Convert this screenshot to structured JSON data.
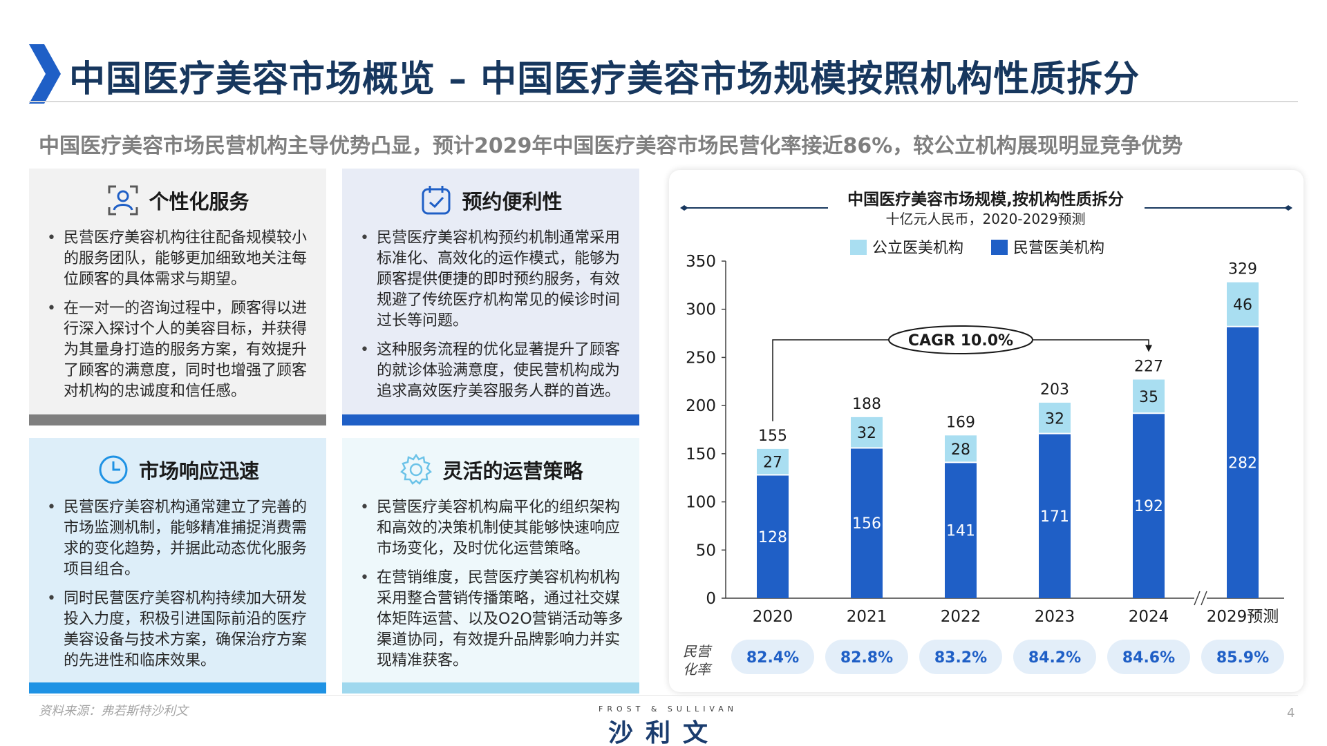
{
  "header": {
    "title": "中国医疗美容市场概览 – 中国医疗美容市场规模按照机构性质拆分",
    "subtitle": "中国医疗美容市场民营机构主导优势凸显，预计2029年中国医疗美容市场民营化率接近86%，较公立机构展现明显竞争优势"
  },
  "cards": [
    {
      "title": "个性化服务",
      "icon": "person-scan-icon",
      "bullets": [
        "民营医疗美容机构往往配备规模较小的服务团队，能够更加细致地关注每位顾客的具体需求与期望。",
        "在一对一的咨询过程中，顾客得以进行深入探讨个人的美容目标，并获得为其量身打造的服务方案，有效提升了顾客的满意度，同时也增强了顾客对机构的忠诚度和信任感。"
      ]
    },
    {
      "title": "预约便利性",
      "icon": "calendar-check-icon",
      "bullets": [
        "民营医疗美容机构预约机制通常采用标准化、高效化的运作模式，能够为顾客提供便捷的即时预约服务，有效规避了传统医疗机构常见的候诊时间过长等问题。",
        "这种服务流程的优化显著提升了顾客的就诊体验满意度，使民营机构成为追求高效医疗美容服务人群的首选。"
      ]
    },
    {
      "title": "市场响应迅速",
      "icon": "clock-icon",
      "bullets": [
        "民营医疗美容机构通常建立了完善的市场监测机制，能够精准捕捉消费需求的变化趋势，并据此动态优化服务项目组合。",
        "同时民营医疗美容机构持续加大研发投入力度，积极引进国际前沿的医疗美容设备与技术方案，确保治疗方案的先进性和临床效果。"
      ]
    },
    {
      "title": "灵活的运营策略",
      "icon": "gear-icon",
      "bullets": [
        "民营医疗美容机构扁平化的组织架构和高效的决策机制使其能够快速响应市场变化，及时优化运营策略。",
        "在营销维度，民营医疗美容机构机构采用整合营销传播策略，通过社交媒体矩阵运营、以及O2O营销活动等多渠道协同，有效提升品牌影响力并实现精准获客。"
      ]
    }
  ],
  "chart_data": {
    "type": "bar",
    "stacked": true,
    "title": "中国医疗美容市场规模,按机构性质拆分",
    "subtitle": "十亿元人民币，2020-2029预测",
    "categories": [
      "2020",
      "2021",
      "2022",
      "2023",
      "2024",
      "2029预测"
    ],
    "series": [
      {
        "name": "民营医美机构",
        "color": "#1f5fc6",
        "values": [
          128,
          156,
          141,
          171,
          192,
          282
        ]
      },
      {
        "name": "公立医美机构",
        "color": "#a9def1",
        "values": [
          27,
          32,
          28,
          32,
          35,
          46
        ]
      }
    ],
    "totals": [
      155,
      188,
      169,
      203,
      227,
      329
    ],
    "ylim": [
      0,
      350
    ],
    "yticks": [
      0,
      50,
      100,
      150,
      200,
      250,
      300,
      350
    ],
    "axis_break_before": "2029预测",
    "cagr_label": "CAGR 10.0%",
    "rate_label": "民营化率",
    "rates": [
      "82.4%",
      "82.8%",
      "83.2%",
      "84.2%",
      "84.6%",
      "85.9%"
    ],
    "legend": "top-center"
  },
  "footer": {
    "source": "资料来源：弗若斯特沙利文",
    "logo_small": "FROST & SULLIVAN",
    "logo_big": "沙利文",
    "page_number": "4"
  }
}
